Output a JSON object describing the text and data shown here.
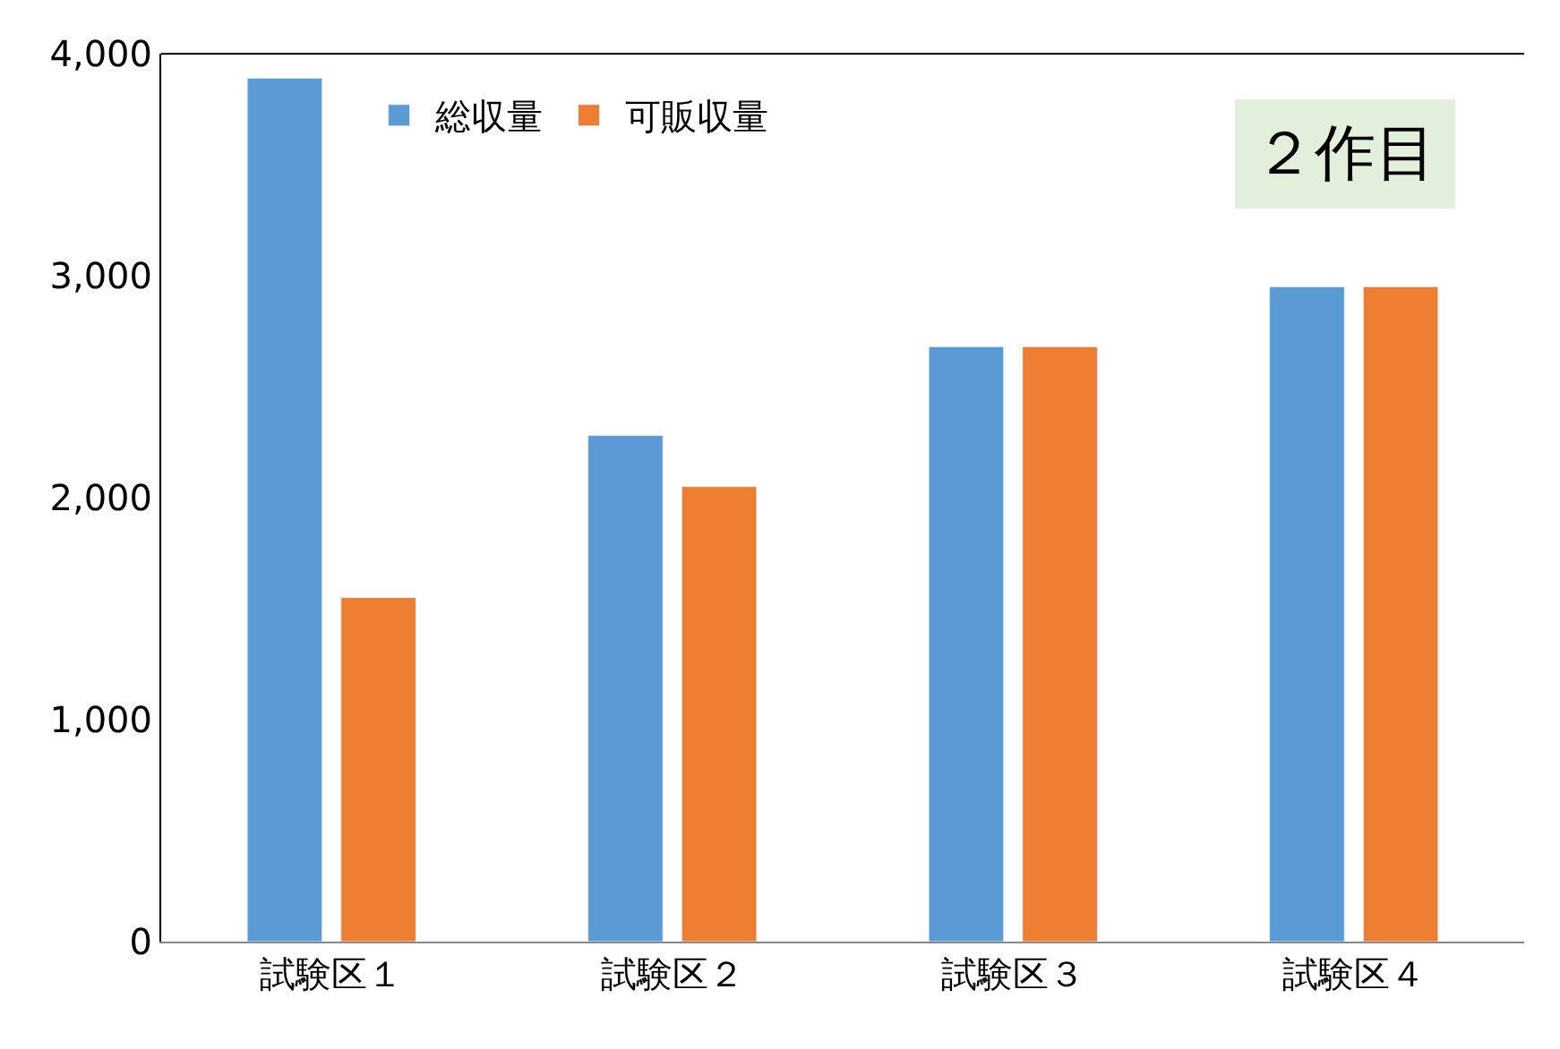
{
  "chart_data": {
    "type": "bar",
    "categories": [
      "試験区１",
      "試験区２",
      "試験区３",
      "試験区４"
    ],
    "series": [
      {
        "name": "総収量",
        "color": "#5b9bd5",
        "values": [
          3890,
          2280,
          2680,
          2950
        ]
      },
      {
        "name": "可販収量",
        "color": "#ed7d31",
        "values": [
          1550,
          2050,
          2680,
          2950
        ]
      }
    ],
    "ylim": [
      0,
      4000
    ],
    "yticks": [
      {
        "value": 0,
        "label": "0"
      },
      {
        "value": 1000,
        "label": "1,000"
      },
      {
        "value": 2000,
        "label": "2,000"
      },
      {
        "value": 3000,
        "label": "3,000"
      },
      {
        "value": 4000,
        "label": "4,000"
      }
    ],
    "annotations": [
      "２作目"
    ],
    "legend": "top"
  }
}
